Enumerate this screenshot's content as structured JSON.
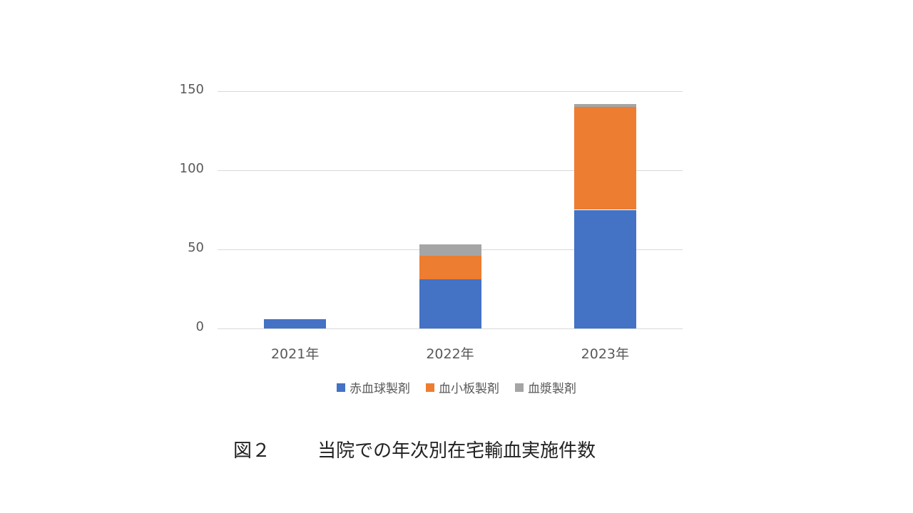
{
  "chart_data": {
    "type": "bar",
    "stacked": true,
    "title": "",
    "xlabel": "",
    "ylabel": "",
    "categories": [
      "2021年",
      "2022年",
      "2023年"
    ],
    "series": [
      {
        "name": "赤血球製剤",
        "color": "#4472c4",
        "values": [
          6,
          31,
          75
        ]
      },
      {
        "name": "血小板製剤",
        "color": "#ed7d31",
        "values": [
          0,
          15,
          65
        ]
      },
      {
        "name": "血漿製剤",
        "color": "#a5a5a5",
        "values": [
          0,
          7,
          2
        ]
      }
    ],
    "ylim": [
      0,
      150
    ],
    "yticks": [
      0,
      50,
      100,
      150
    ],
    "grid": true,
    "legend_position": "bottom"
  },
  "caption": {
    "figure_label": "図２",
    "text": "当院での年次別在宅輸血実施件数"
  }
}
